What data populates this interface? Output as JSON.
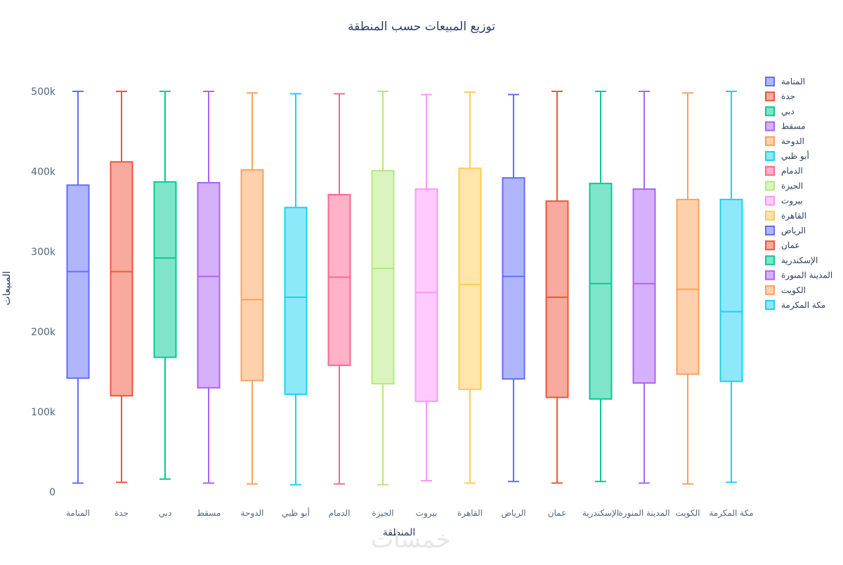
{
  "chart_data": {
    "type": "box",
    "title": "توزيع المبيعات حسب المنطقة",
    "xlabel": "المنطقة",
    "ylabel": "المبيعات",
    "ylim": [
      0,
      500000
    ],
    "yticks": [
      {
        "value": 0,
        "label": "0"
      },
      {
        "value": 100000,
        "label": "100k"
      },
      {
        "value": 200000,
        "label": "200k"
      },
      {
        "value": 300000,
        "label": "300k"
      },
      {
        "value": 400000,
        "label": "400k"
      },
      {
        "value": 500000,
        "label": "500k"
      }
    ],
    "grid": false,
    "legend_position": "right",
    "series": [
      {
        "name": "المنامة",
        "color": "#636efa",
        "min": 11000,
        "q1": 142000,
        "median": 275000,
        "q3": 383000,
        "max": 500000
      },
      {
        "name": "جدة",
        "color": "#ef553b",
        "min": 12000,
        "q1": 120000,
        "median": 275000,
        "q3": 412000,
        "max": 500000
      },
      {
        "name": "دبي",
        "color": "#00cc96",
        "min": 16000,
        "q1": 168000,
        "median": 292000,
        "q3": 387000,
        "max": 500000
      },
      {
        "name": "مسقط",
        "color": "#ab63fa",
        "min": 11000,
        "q1": 130000,
        "median": 269000,
        "q3": 386000,
        "max": 500000
      },
      {
        "name": "الدوحة",
        "color": "#ffa15a",
        "min": 10000,
        "q1": 139000,
        "median": 240000,
        "q3": 402000,
        "max": 498000
      },
      {
        "name": "أبو ظبي",
        "color": "#19d3f3",
        "min": 9000,
        "q1": 122000,
        "median": 243000,
        "q3": 355000,
        "max": 497000
      },
      {
        "name": "الدمام",
        "color": "#ff6692",
        "min": 10000,
        "q1": 158000,
        "median": 268000,
        "q3": 371000,
        "max": 497000
      },
      {
        "name": "الجيزة",
        "color": "#b6e880",
        "min": 9000,
        "q1": 135000,
        "median": 279000,
        "q3": 401000,
        "max": 500000
      },
      {
        "name": "بيروت",
        "color": "#ff97ff",
        "min": 14000,
        "q1": 113000,
        "median": 249000,
        "q3": 378000,
        "max": 496000
      },
      {
        "name": "القاهرة",
        "color": "#fecb52",
        "min": 11000,
        "q1": 128000,
        "median": 259000,
        "q3": 404000,
        "max": 499000
      },
      {
        "name": "الرياض",
        "color": "#636efa",
        "min": 13000,
        "q1": 141000,
        "median": 269000,
        "q3": 392000,
        "max": 496000
      },
      {
        "name": "عمان",
        "color": "#ef553b",
        "min": 11000,
        "q1": 118000,
        "median": 243000,
        "q3": 363000,
        "max": 500000
      },
      {
        "name": "الإسكندرية",
        "color": "#00cc96",
        "min": 13000,
        "q1": 116000,
        "median": 260000,
        "q3": 385000,
        "max": 500000
      },
      {
        "name": "المدينة المنورة",
        "color": "#ab63fa",
        "min": 11000,
        "q1": 136000,
        "median": 260000,
        "q3": 378000,
        "max": 500000
      },
      {
        "name": "الكويت",
        "color": "#ffa15a",
        "min": 10000,
        "q1": 147000,
        "median": 253000,
        "q3": 365000,
        "max": 498000
      },
      {
        "name": "مكة المكرمة",
        "color": "#19d3f3",
        "min": 12000,
        "q1": 138000,
        "median": 225000,
        "q3": 365000,
        "max": 500000
      }
    ]
  },
  "watermark": "خمسات"
}
